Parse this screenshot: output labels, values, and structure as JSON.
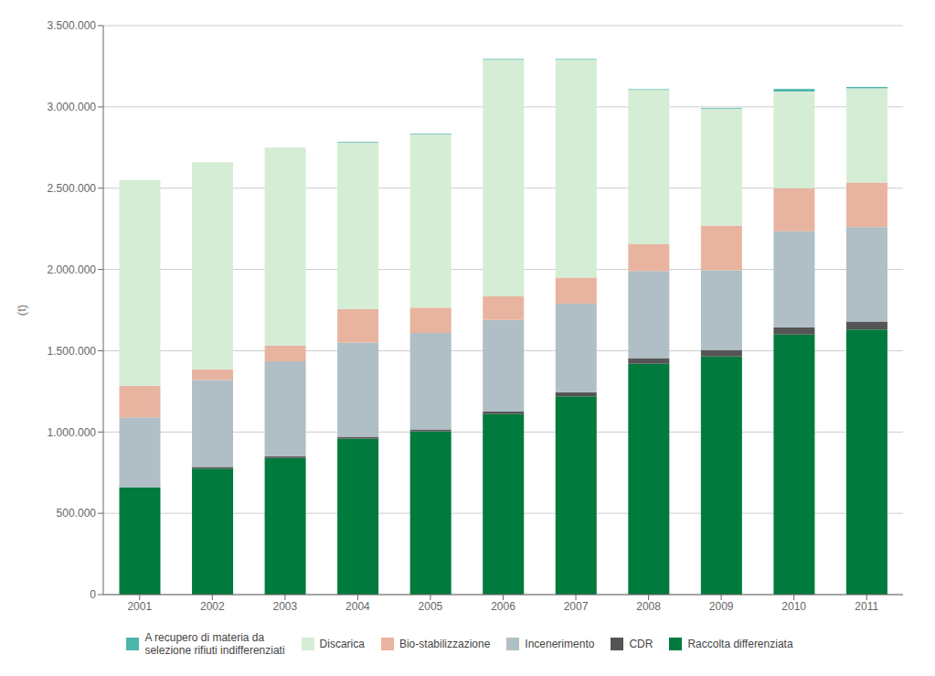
{
  "chart_data": {
    "type": "bar",
    "stacked": true,
    "grid": true,
    "legend": "bottom",
    "ylabel": "(t)",
    "categories": [
      "2001",
      "2002",
      "2003",
      "2004",
      "2005",
      "2006",
      "2007",
      "2008",
      "2009",
      "2010",
      "2011"
    ],
    "series": [
      {
        "name": "Raccolta differenziata",
        "color": "#007A3D",
        "values": [
          660000,
          775000,
          840000,
          960000,
          1005000,
          1110000,
          1220000,
          1420000,
          1465000,
          1600000,
          1630000
        ]
      },
      {
        "name": "CDR",
        "color": "#555555",
        "values": [
          0,
          10000,
          10000,
          10000,
          10000,
          15000,
          25000,
          35000,
          40000,
          45000,
          50000
        ]
      },
      {
        "name": "Incenerimento",
        "color": "#B0BEC5",
        "values": [
          430000,
          535000,
          585000,
          580000,
          595000,
          565000,
          545000,
          535000,
          490000,
          590000,
          580000
        ]
      },
      {
        "name": "Bio-stabilizzazione",
        "color": "#E8B4A0",
        "values": [
          195000,
          65000,
          95000,
          205000,
          155000,
          145000,
          160000,
          165000,
          275000,
          265000,
          275000
        ]
      },
      {
        "name": "Discarica",
        "color": "#D5EDD5",
        "values": [
          1265000,
          1275000,
          1220000,
          1025000,
          1065000,
          1455000,
          1340000,
          950000,
          720000,
          595000,
          580000
        ]
      },
      {
        "name": "A recupero di materia da\nselezione rifiuti indifferenziati",
        "color": "#4DB6AC",
        "values": [
          0,
          0,
          0,
          4000,
          4000,
          4000,
          4000,
          4000,
          4000,
          15000,
          8000
        ]
      }
    ],
    "ylim": [
      0,
      3500000
    ],
    "yticks": [
      0,
      {
        "value": 500000,
        "label": "500.000"
      },
      {
        "value": 1000000,
        "label": "1.000.000"
      },
      {
        "value": 1500000,
        "label": "1.500.000"
      },
      {
        "value": 2000000,
        "label": "2.000.000"
      },
      {
        "value": 2500000,
        "label": "2.500.000"
      },
      {
        "value": 3000000,
        "label": "3.000.000"
      },
      {
        "value": 3500000,
        "label": "3.500.000"
      }
    ]
  }
}
